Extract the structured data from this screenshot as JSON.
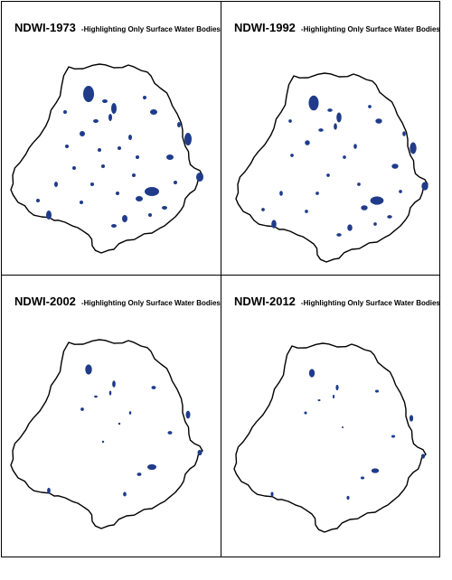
{
  "panels": [
    {
      "title": "NDWI-1973",
      "subtitle": "-Highlighting Only Surface Water Bodies",
      "water_body_count": 34,
      "scale": 1.0,
      "water_color": "#1f3b8a"
    },
    {
      "title": "NDWI-1992",
      "subtitle": "-Highlighting Only Surface Water Bodies",
      "water_body_count": 30,
      "scale": 0.92,
      "water_color": "#1f3b8a"
    },
    {
      "title": "NDWI-2002",
      "subtitle": "-Highlighting Only Surface Water Bodies",
      "water_body_count": 16,
      "scale": 0.62,
      "water_color": "#1f3b8a"
    },
    {
      "title": "NDWI-2012",
      "subtitle": "-Highlighting Only Surface Water Bodies",
      "water_body_count": 14,
      "scale": 0.52,
      "water_color": "#1f3b8a"
    }
  ],
  "boundary_color": "#000000",
  "basin_fill": "#ffffff"
}
